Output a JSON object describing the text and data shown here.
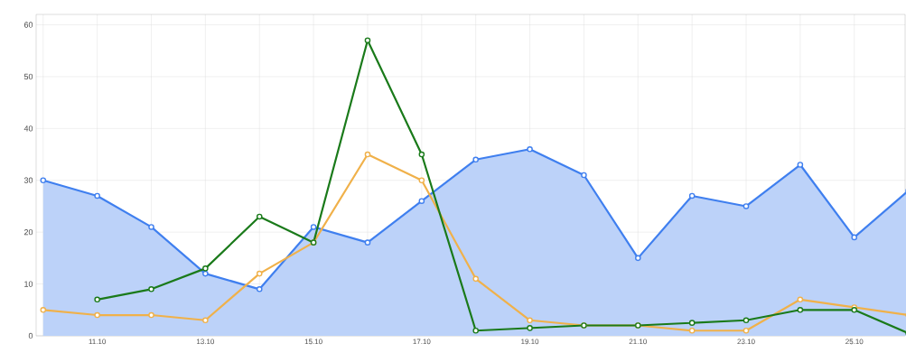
{
  "chart_data": {
    "type": "line",
    "categories": [
      null,
      "11.10",
      null,
      "13.10",
      null,
      "15.10",
      null,
      "17.10",
      null,
      "19.10",
      null,
      "21.10",
      null,
      "23.10",
      null,
      "25.10",
      null
    ],
    "series": [
      {
        "type": "area",
        "color": "#3f7fef",
        "values": [
          30,
          27,
          21,
          12,
          9,
          21,
          18,
          26,
          34,
          36,
          31,
          15,
          27,
          25,
          33,
          19,
          28
        ]
      },
      {
        "color": "#f0b14a",
        "values": [
          5,
          4,
          4,
          3,
          12,
          18,
          35,
          30,
          11,
          3,
          2,
          2,
          1,
          1,
          7,
          5.5,
          4
        ]
      },
      {
        "color": "#1a7a1a",
        "values": [
          null,
          7,
          9,
          13,
          23,
          18,
          57,
          35,
          1,
          1.5,
          2,
          2,
          2.5,
          3,
          5,
          5,
          0.5
        ]
      }
    ],
    "ylim": [
      0,
      62
    ],
    "yticks": [
      0,
      10,
      20,
      30,
      40,
      50,
      60
    ],
    "grid": true,
    "marker": "circle",
    "line_style": "solid"
  }
}
